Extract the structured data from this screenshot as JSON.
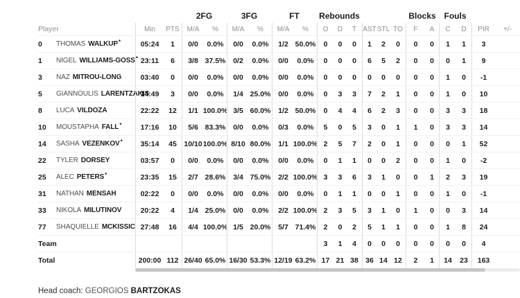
{
  "header": {
    "groups": [
      "2FG",
      "3FG",
      "FT",
      "Rebounds",
      "Blocks",
      "Fouls"
    ],
    "columns": [
      "Player",
      "Min",
      "PTS",
      "M/A",
      "%",
      "M/A",
      "%",
      "M/A",
      "%",
      "O",
      "D",
      "T",
      "AST",
      "STL",
      "TO",
      "F",
      "A",
      "C",
      "D",
      "PIR",
      "+/-"
    ]
  },
  "table": {
    "starter_mark": "*",
    "players": [
      {
        "num": "0",
        "first": "THOMAS",
        "last": "WALKUP",
        "starter": true,
        "stats": [
          "05:24",
          "1",
          "0/0",
          "0.0%",
          "0/0",
          "0.0%",
          "1/2",
          "50.0%",
          "0",
          "0",
          "0",
          "1",
          "2",
          "0",
          "0",
          "0",
          "1",
          "1",
          "3",
          ""
        ]
      },
      {
        "num": "1",
        "first": "NIGEL",
        "last": "WILLIAMS-GOSS",
        "starter": true,
        "stats": [
          "23:11",
          "6",
          "3/8",
          "37.5%",
          "0/2",
          "0.0%",
          "0/0",
          "0.0%",
          "0",
          "0",
          "0",
          "6",
          "5",
          "2",
          "0",
          "0",
          "0",
          "1",
          "9",
          ""
        ]
      },
      {
        "num": "3",
        "first": "NAZ",
        "last": "MITROU-LONG",
        "starter": false,
        "stats": [
          "03:40",
          "0",
          "0/0",
          "0.0%",
          "0/0",
          "0.0%",
          "0/0",
          "0.0%",
          "0",
          "0",
          "0",
          "0",
          "0",
          "0",
          "0",
          "0",
          "1",
          "0",
          "-1",
          ""
        ]
      },
      {
        "num": "5",
        "first": "GIANNOULIS",
        "last": "LARENTZAKIS",
        "starter": false,
        "stats": [
          "14:49",
          "3",
          "0/0",
          "0.0%",
          "1/4",
          "25.0%",
          "0/0",
          "0.0%",
          "0",
          "3",
          "3",
          "7",
          "2",
          "1",
          "0",
          "0",
          "1",
          "0",
          "10",
          ""
        ]
      },
      {
        "num": "8",
        "first": "LUCA",
        "last": "VILDOZA",
        "starter": false,
        "stats": [
          "22:22",
          "12",
          "1/1",
          "100.0%",
          "3/5",
          "60.0%",
          "1/2",
          "50.0%",
          "0",
          "4",
          "4",
          "6",
          "2",
          "3",
          "0",
          "0",
          "3",
          "3",
          "18",
          ""
        ]
      },
      {
        "num": "10",
        "first": "MOUSTAPHA",
        "last": "FALL",
        "starter": true,
        "stats": [
          "17:16",
          "10",
          "5/6",
          "83.3%",
          "0/0",
          "0.0%",
          "0/3",
          "0.0%",
          "5",
          "0",
          "5",
          "3",
          "0",
          "1",
          "1",
          "0",
          "3",
          "3",
          "14",
          ""
        ]
      },
      {
        "num": "14",
        "first": "SASHA",
        "last": "VEZENKOV",
        "starter": true,
        "stats": [
          "35:14",
          "45",
          "10/10",
          "100.0%",
          "8/10",
          "80.0%",
          "1/1",
          "100.0%",
          "2",
          "5",
          "7",
          "2",
          "0",
          "1",
          "0",
          "0",
          "0",
          "1",
          "52",
          ""
        ]
      },
      {
        "num": "22",
        "first": "TYLER",
        "last": "DORSEY",
        "starter": false,
        "stats": [
          "03:57",
          "0",
          "0/0",
          "0.0%",
          "0/0",
          "0.0%",
          "0/0",
          "0.0%",
          "0",
          "1",
          "1",
          "0",
          "0",
          "2",
          "0",
          "0",
          "1",
          "0",
          "-2",
          ""
        ]
      },
      {
        "num": "25",
        "first": "ALEC",
        "last": "PETERS",
        "starter": true,
        "stats": [
          "23:35",
          "15",
          "2/7",
          "28.6%",
          "3/4",
          "75.0%",
          "2/2",
          "100.0%",
          "3",
          "3",
          "6",
          "3",
          "1",
          "0",
          "0",
          "1",
          "2",
          "3",
          "19",
          ""
        ]
      },
      {
        "num": "31",
        "first": "NATHAN",
        "last": "MENSAH",
        "starter": false,
        "stats": [
          "02:22",
          "0",
          "0/0",
          "0.0%",
          "0/0",
          "0.0%",
          "0/0",
          "0.0%",
          "0",
          "1",
          "1",
          "0",
          "0",
          "1",
          "0",
          "0",
          "1",
          "0",
          "-1",
          ""
        ]
      },
      {
        "num": "33",
        "first": "NIKOLA",
        "last": "MILUTINOV",
        "starter": false,
        "stats": [
          "20:22",
          "4",
          "1/4",
          "25.0%",
          "0/0",
          "0.0%",
          "2/2",
          "100.0%",
          "2",
          "3",
          "5",
          "3",
          "1",
          "0",
          "1",
          "0",
          "0",
          "3",
          "14",
          ""
        ]
      },
      {
        "num": "77",
        "first": "SHAQUIELLE",
        "last": "MCKISSIC",
        "starter": false,
        "stats": [
          "27:48",
          "16",
          "4/4",
          "100.0%",
          "1/5",
          "20.0%",
          "5/7",
          "71.4%",
          "2",
          "0",
          "2",
          "5",
          "1",
          "1",
          "0",
          "0",
          "1",
          "8",
          "24",
          ""
        ]
      }
    ],
    "team": {
      "label": "Team",
      "stats": [
        "",
        "",
        "",
        "",
        "",
        "",
        "",
        "",
        "3",
        "1",
        "4",
        "0",
        "0",
        "0",
        "0",
        "0",
        "0",
        "0",
        "4",
        ""
      ]
    },
    "total": {
      "label": "Total",
      "stats": [
        "200:00",
        "112",
        "26/40",
        "65.0%",
        "16/30",
        "53.3%",
        "12/19",
        "63.2%",
        "17",
        "21",
        "38",
        "36",
        "14",
        "12",
        "2",
        "1",
        "14",
        "23",
        "163",
        ""
      ]
    }
  },
  "footer": {
    "head_coach_label": "Head coach:",
    "coach_first": "GEORGIOS",
    "coach_last": "BARTZOKAS"
  },
  "colors": {
    "text": "#1c1c1c",
    "muted": "#8e8e8e",
    "divider": "#dcdcdc",
    "row_line": "#f1f1f1",
    "scrollbar_thumb": "#c5c5c5"
  }
}
